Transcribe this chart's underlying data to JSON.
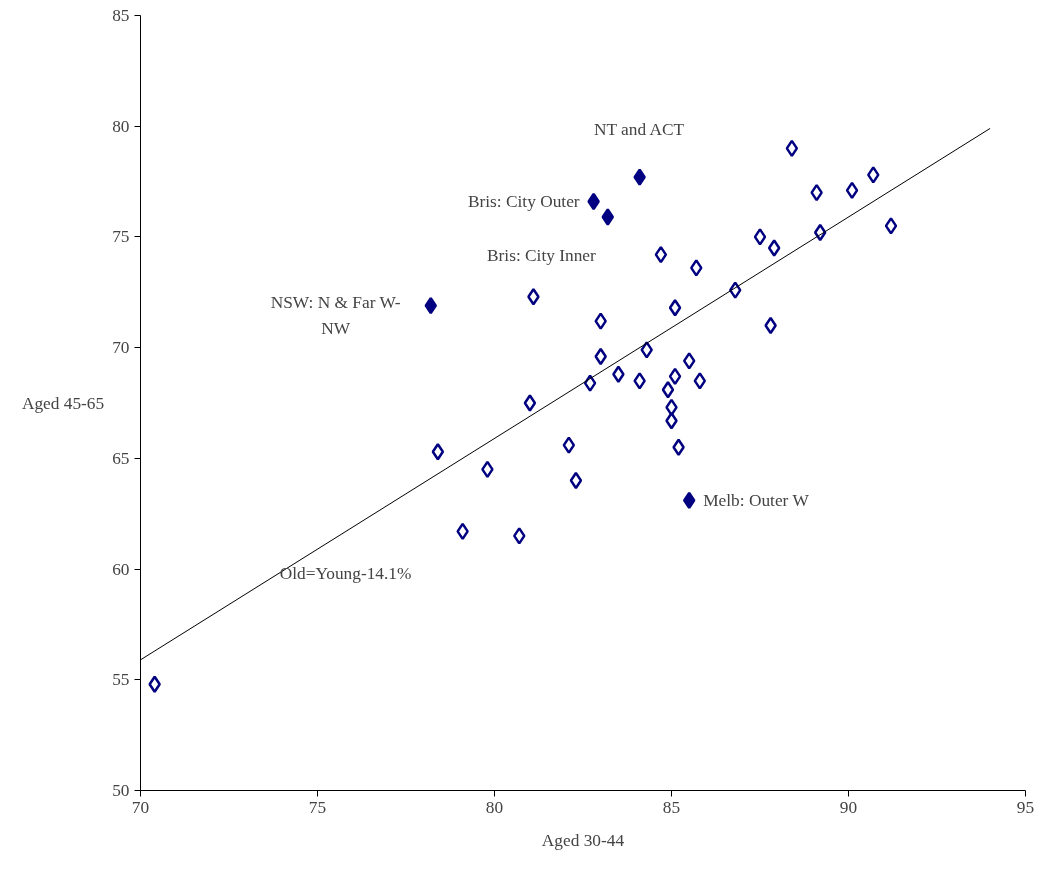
{
  "chart_data": {
    "type": "scatter",
    "xlabel": "Aged 30-44",
    "ylabel": "Aged 45-65",
    "xlim": [
      70,
      95
    ],
    "ylim": [
      50,
      85
    ],
    "xticks": [
      70,
      75,
      80,
      85,
      90,
      95
    ],
    "yticks": [
      50,
      55,
      60,
      65,
      70,
      75,
      80,
      85
    ],
    "grid": false,
    "marker": "diamond",
    "series": [
      {
        "color": "#000080",
        "x": [
          70.4,
          78.4,
          79.1,
          79.8,
          80.7,
          81.0,
          81.1,
          82.1,
          82.3,
          82.7,
          83.0,
          83.0,
          83.5,
          84.1,
          84.3,
          84.7,
          84.9,
          85.0,
          85.0,
          85.1,
          85.1,
          85.2,
          85.5,
          85.7,
          85.8,
          86.8,
          87.5,
          87.8,
          87.9,
          88.4,
          89.1,
          89.2,
          90.1,
          90.7,
          91.2
        ],
        "values": [
          54.8,
          65.3,
          61.7,
          64.5,
          61.5,
          67.5,
          72.3,
          65.6,
          64.0,
          68.4,
          71.2,
          69.6,
          68.8,
          68.5,
          69.9,
          74.2,
          68.1,
          67.3,
          66.7,
          68.7,
          71.8,
          65.5,
          69.4,
          73.6,
          68.5,
          72.6,
          75.0,
          71.0,
          74.5,
          79.0,
          77.0,
          75.2,
          77.1,
          77.8,
          75.5
        ]
      },
      {
        "color": "#000080",
        "x": [
          84.1,
          82.8,
          83.2,
          78.2,
          85.5
        ],
        "values": [
          77.7,
          76.6,
          75.9,
          71.9,
          63.1
        ]
      },
      {
        "type": "line",
        "marker": "none",
        "color": "#000000",
        "x": [
          70,
          94
        ],
        "values": [
          55.9,
          79.9
        ]
      }
    ],
    "annotations": [
      {
        "text": "NT and ACT",
        "x": 84.1,
        "y": 77.7
      },
      {
        "text": "Bris: City Outer",
        "x": 82.8,
        "y": 76.6
      },
      {
        "text": "Bris: City Inner",
        "x": 83.2,
        "y": 75.9
      },
      {
        "text": "NSW: N & Far W-\nNW",
        "x": 78.2,
        "y": 71.9
      },
      {
        "text": "Melb: Outer W",
        "x": 85.5,
        "y": 63.1
      },
      {
        "text": "Old=Young-14.1%",
        "x": 76.5,
        "y": 62.4
      }
    ]
  }
}
